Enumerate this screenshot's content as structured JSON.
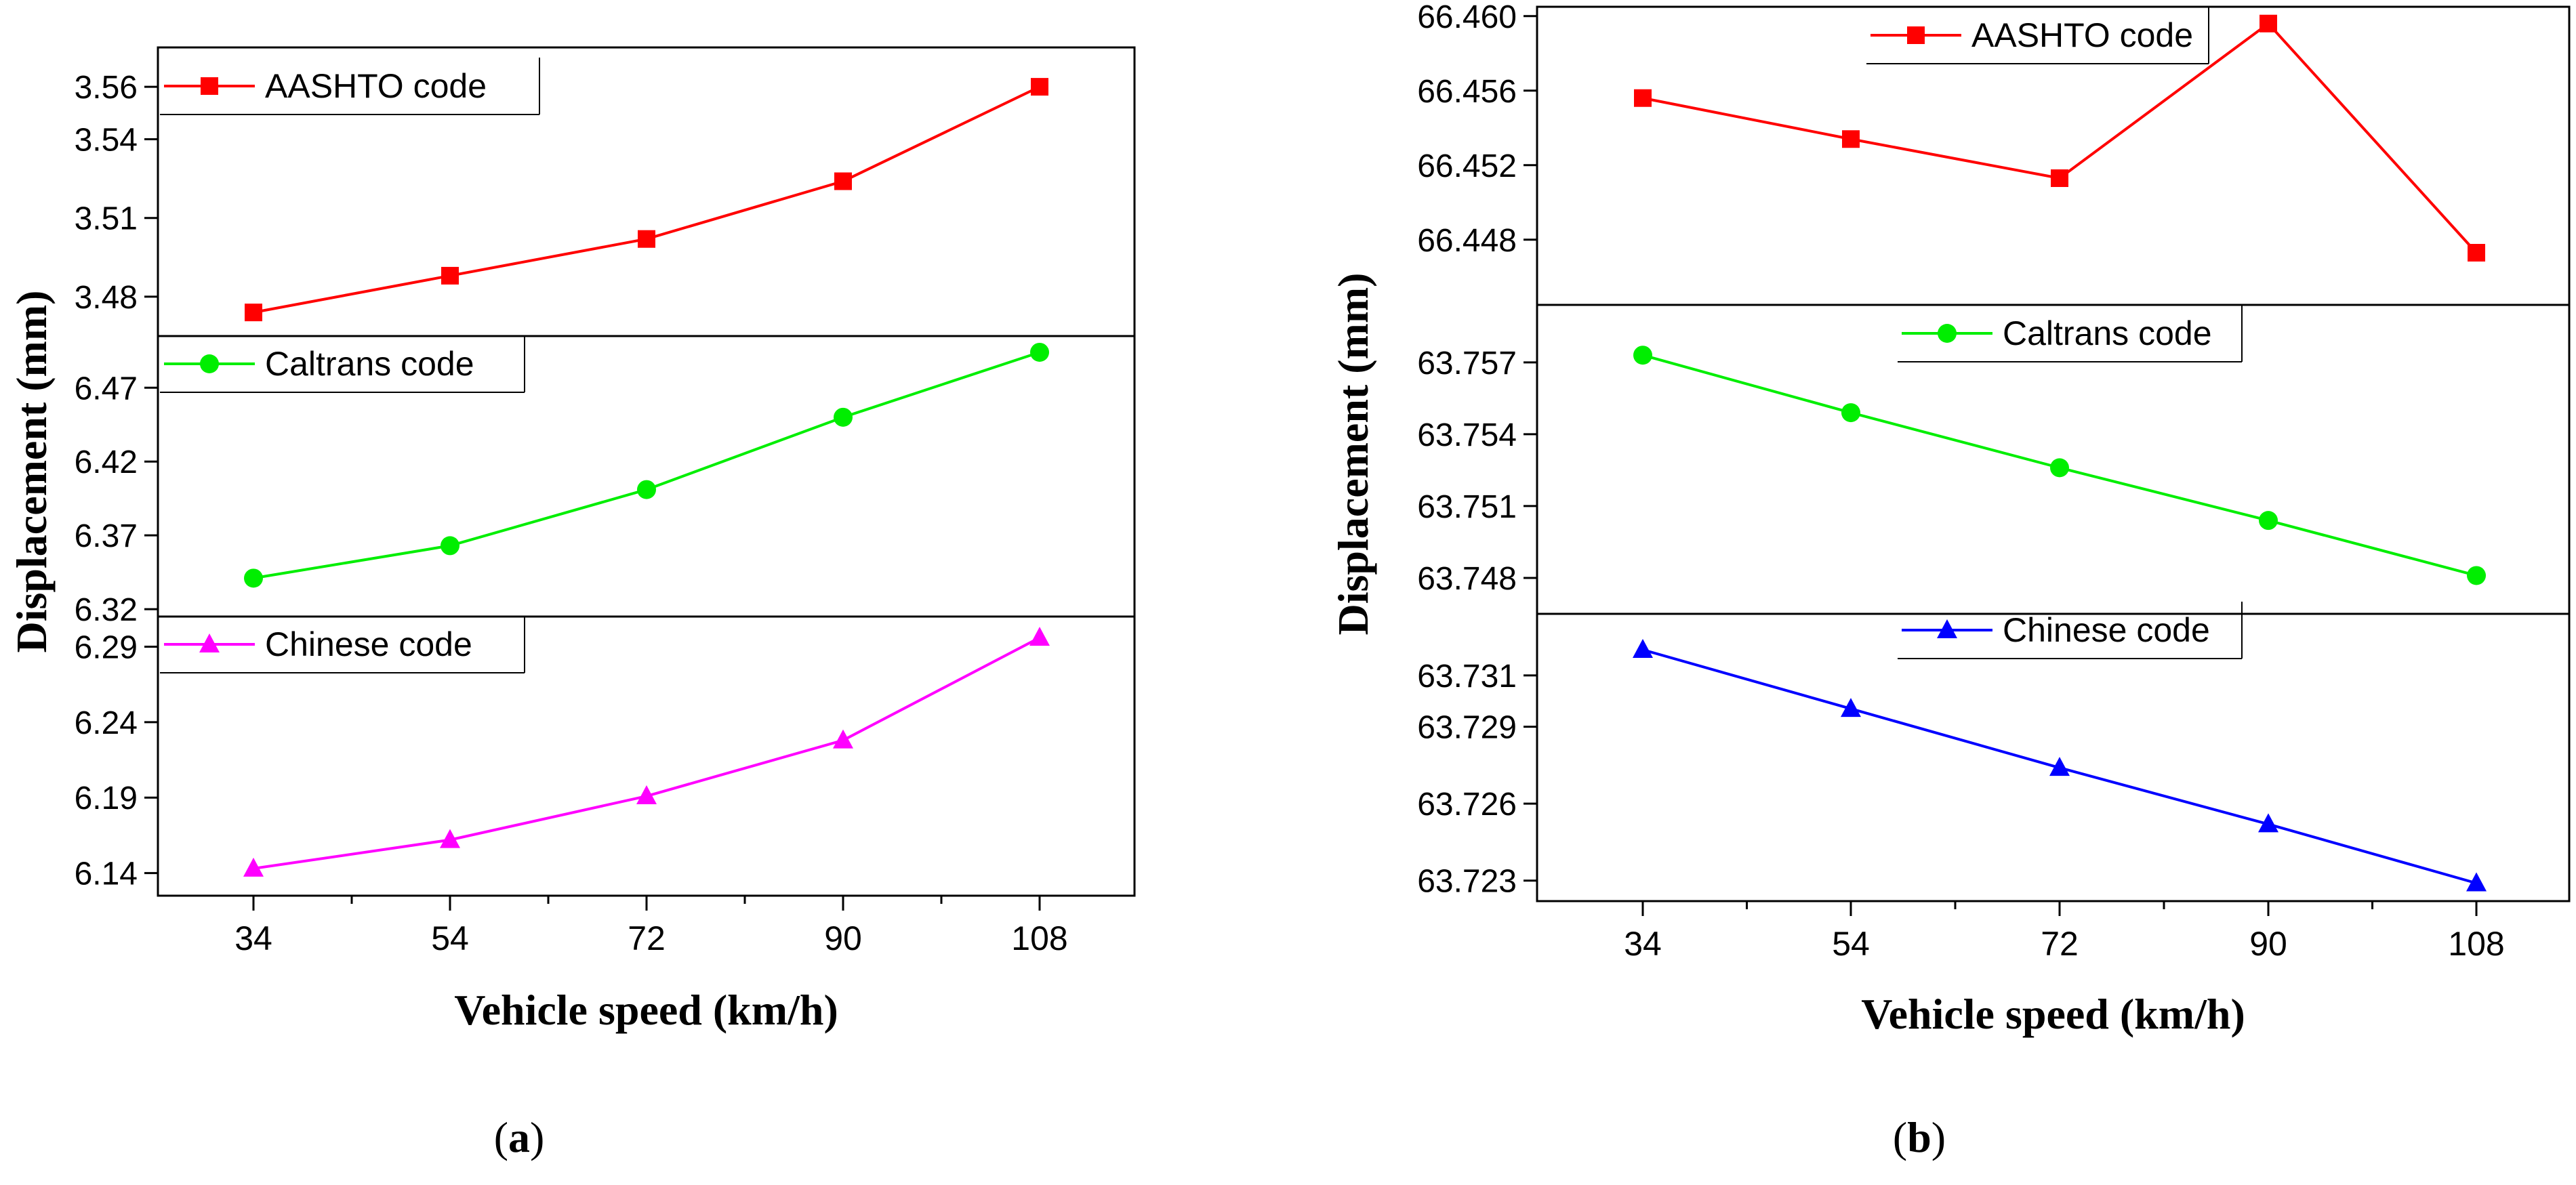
{
  "chart_data": [
    {
      "type": "line",
      "panel_label": "(a)",
      "xlabel": "Vehicle speed (km/h)",
      "ylabel": "Displacement (mm)",
      "categories": [
        "34",
        "54",
        "72",
        "90",
        "108"
      ],
      "subplots": [
        {
          "name": "AASHTO code",
          "color": "#ff0000",
          "marker": "square",
          "yticks": [
            "3.48",
            "3.51",
            "3.54",
            "3.56"
          ],
          "ylim": [
            3.465,
            3.575
          ],
          "values": [
            3.474,
            3.488,
            3.502,
            3.524,
            3.56
          ]
        },
        {
          "name": "Caltrans code",
          "color": "#00ee00",
          "marker": "circle",
          "yticks": [
            "6.32",
            "6.37",
            "6.42",
            "6.47"
          ],
          "ylim": [
            6.315,
            6.505
          ],
          "values": [
            6.341,
            6.363,
            6.401,
            6.45,
            6.494
          ]
        },
        {
          "name": "Chinese code",
          "color": "#ff00ff",
          "marker": "triangle",
          "yticks": [
            "6.14",
            "6.19",
            "6.24",
            "6.29"
          ],
          "ylim": [
            6.125,
            6.31
          ],
          "values": [
            6.143,
            6.162,
            6.191,
            6.228,
            6.296
          ]
        }
      ]
    },
    {
      "type": "line",
      "panel_label": "(b)",
      "xlabel": "Vehicle speed (km/h)",
      "ylabel": "Displacement (mm)",
      "categories": [
        "34",
        "54",
        "72",
        "90",
        "108"
      ],
      "subplots": [
        {
          "name": "AASHTO code",
          "color": "#ff0000",
          "marker": "square",
          "yticks": [
            "66.448",
            "66.452",
            "66.456",
            "66.460"
          ],
          "ylim": [
            66.4445,
            66.4605
          ],
          "values": [
            66.4556,
            66.4534,
            66.4513,
            66.4596,
            66.4473
          ]
        },
        {
          "name": "Caltrans code",
          "color": "#00ee00",
          "marker": "circle",
          "yticks": [
            "63.748",
            "63.751",
            "63.754",
            "63.757"
          ],
          "ylim": [
            63.7465,
            63.7594
          ],
          "values": [
            63.7573,
            63.7549,
            63.7526,
            63.7504,
            63.7481
          ]
        },
        {
          "name": "Chinese code",
          "color": "#0000ff",
          "marker": "triangle",
          "yticks": [
            "63.723",
            "63.726",
            "63.729",
            "63.731"
          ],
          "ylim": [
            63.7222,
            63.7334
          ],
          "values": [
            63.732,
            63.7297,
            63.7274,
            63.7252,
            63.7229
          ]
        }
      ]
    }
  ]
}
